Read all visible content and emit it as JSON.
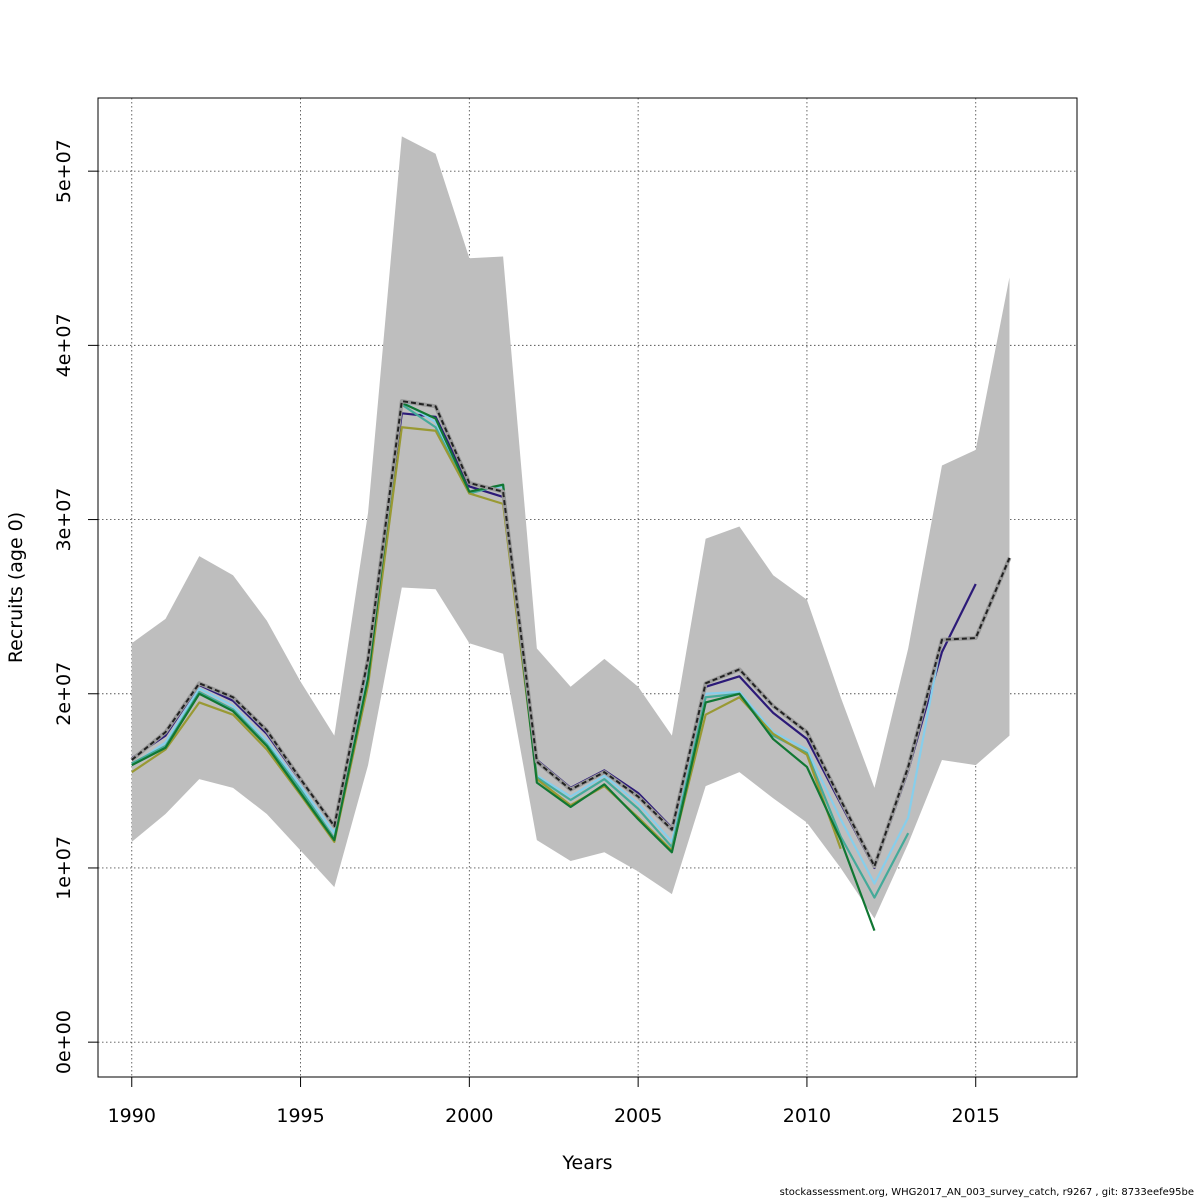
{
  "chart_data": {
    "type": "line",
    "title": "",
    "xlabel": "Years",
    "ylabel": "Recruits (age 0)",
    "xlim": [
      1989,
      2018
    ],
    "ylim": [
      -2000000,
      54200000
    ],
    "xticks": [
      1990,
      1995,
      2000,
      2005,
      2010,
      2015
    ],
    "xtick_labels": [
      "1990",
      "1995",
      "2000",
      "2005",
      "2010",
      "2015"
    ],
    "yticks": [
      0,
      10000000,
      20000000,
      30000000,
      40000000,
      50000000
    ],
    "ytick_labels": [
      "0e+00",
      "1e+07",
      "2e+07",
      "3e+07",
      "4e+07",
      "5e+07"
    ],
    "grid": true,
    "confidence_band": {
      "color": "#bebebe",
      "x": [
        1990,
        1991,
        1992,
        1993,
        1994,
        1995,
        1996,
        1997,
        1998,
        1999,
        2000,
        2001,
        2002,
        2003,
        2004,
        2005,
        2006,
        2007,
        2008,
        2009,
        2010,
        2011,
        2012,
        2013,
        2014,
        2015,
        2016
      ],
      "upper": [
        22900000,
        24300000,
        27900000,
        26800000,
        24200000,
        20700000,
        17600000,
        30400000,
        52000000,
        51000000,
        45000000,
        45100000,
        22600000,
        20400000,
        22000000,
        20400000,
        17600000,
        28900000,
        29600000,
        26800000,
        25400000,
        19800000,
        14600000,
        22600000,
        33100000,
        34000000,
        43900000
      ],
      "lower": [
        11500000,
        13100000,
        15100000,
        14600000,
        13100000,
        11000000,
        8900000,
        15900000,
        26100000,
        26000000,
        22900000,
        22300000,
        11600000,
        10400000,
        10900000,
        9800000,
        8500000,
        14700000,
        15500000,
        14000000,
        12600000,
        10000000,
        7100000,
        11400000,
        16200000,
        15900000,
        17600000
      ]
    },
    "series": [
      {
        "color": "#2c1a78",
        "width": 2.2,
        "dash": false,
        "x": [
          1990,
          1991,
          1992,
          1993,
          1994,
          1995,
          1996,
          1997,
          1998,
          1999,
          2000,
          2001,
          2002,
          2003,
          2004,
          2005,
          2006,
          2007,
          2008,
          2009,
          2010,
          2011,
          2012,
          2013,
          2014,
          2015
        ],
        "y": [
          16300000,
          17600000,
          20500000,
          19600000,
          17700000,
          15000000,
          12400000,
          21800000,
          36100000,
          35900000,
          31900000,
          31300000,
          16200000,
          14600000,
          15600000,
          14300000,
          12300000,
          20400000,
          21000000,
          18900000,
          17400000,
          13700000,
          10000000,
          15600000,
          22400000,
          26300000
        ]
      },
      {
        "color": "#87ceeb",
        "width": 2.2,
        "dash": false,
        "x": [
          1990,
          1991,
          1992,
          1993,
          1994,
          1995,
          1996,
          1997,
          1998,
          1999,
          2000,
          2001,
          2002,
          2003,
          2004,
          2005,
          2006,
          2007,
          2008,
          2009,
          2010,
          2011,
          2012,
          2013,
          2014
        ],
        "y": [
          15900000,
          17200000,
          20300000,
          19300000,
          17300000,
          14700000,
          12000000,
          21200000,
          36800000,
          35600000,
          31600000,
          31900000,
          15300000,
          14100000,
          15300000,
          13700000,
          11500000,
          20000000,
          20100000,
          17800000,
          16800000,
          12800000,
          9100000,
          12900000,
          23200000
        ]
      },
      {
        "color": "#44aa99",
        "width": 2.2,
        "dash": false,
        "x": [
          1990,
          1991,
          1992,
          1993,
          1994,
          1995,
          1996,
          1997,
          1998,
          1999,
          2000,
          2001,
          2002,
          2003,
          2004,
          2005,
          2006,
          2007,
          2008,
          2009,
          2010,
          2011,
          2012,
          2013
        ],
        "y": [
          16000000,
          17000000,
          20100000,
          19100000,
          17100000,
          14500000,
          11700000,
          20700000,
          36600000,
          35300000,
          31500000,
          32000000,
          15200000,
          13900000,
          15100000,
          13400000,
          11200000,
          19800000,
          20000000,
          17600000,
          16600000,
          11800000,
          8300000,
          12000000
        ]
      },
      {
        "color": "#999933",
        "width": 2.2,
        "dash": false,
        "x": [
          1990,
          1991,
          1992,
          1993,
          1994,
          1995,
          1996,
          1997,
          1998,
          1999,
          2000,
          2001,
          2002,
          2003,
          2004,
          2005,
          2006,
          2007,
          2008,
          2009,
          2010,
          2011
        ],
        "y": [
          15500000,
          16800000,
          19500000,
          18800000,
          16800000,
          14200000,
          11500000,
          20500000,
          35300000,
          35100000,
          31500000,
          30900000,
          15100000,
          13600000,
          14700000,
          12900000,
          11000000,
          18800000,
          19800000,
          17700000,
          16500000,
          11100000
        ]
      },
      {
        "color": "#117733",
        "width": 2.2,
        "dash": false,
        "x": [
          1990,
          1991,
          1992,
          1993,
          1994,
          1995,
          1996,
          1997,
          1998,
          1999,
          2000,
          2001,
          2002,
          2003,
          2004,
          2005,
          2006,
          2007,
          2008,
          2009,
          2010,
          2011,
          2012
        ],
        "y": [
          15900000,
          16900000,
          20000000,
          19000000,
          17000000,
          14300000,
          11600000,
          20900000,
          36700000,
          35800000,
          31600000,
          32000000,
          14900000,
          13500000,
          14800000,
          12800000,
          10900000,
          19500000,
          20000000,
          17400000,
          15800000,
          11600000,
          6400000
        ]
      },
      {
        "color": "#222222",
        "width": 2.0,
        "dash": true,
        "underlay": "#9a9a9a",
        "x": [
          1990,
          1991,
          1992,
          1993,
          1994,
          1995,
          1996,
          1997,
          1998,
          1999,
          2000,
          2001,
          2002,
          2003,
          2004,
          2005,
          2006,
          2007,
          2008,
          2009,
          2010,
          2011,
          2012,
          2013,
          2014,
          2015,
          2016
        ],
        "y": [
          16200000,
          17800000,
          20600000,
          19800000,
          17900000,
          15100000,
          12400000,
          22000000,
          36800000,
          36500000,
          32100000,
          31600000,
          16100000,
          14500000,
          15500000,
          14100000,
          12200000,
          20600000,
          21400000,
          19300000,
          17800000,
          13900000,
          10100000,
          15800000,
          23100000,
          23200000,
          27800000
        ]
      }
    ]
  },
  "footer": {
    "credit": "stockassessment.org, WHG2017_AN_003_survey_catch, r9267 , git: 8733eefe95be"
  }
}
